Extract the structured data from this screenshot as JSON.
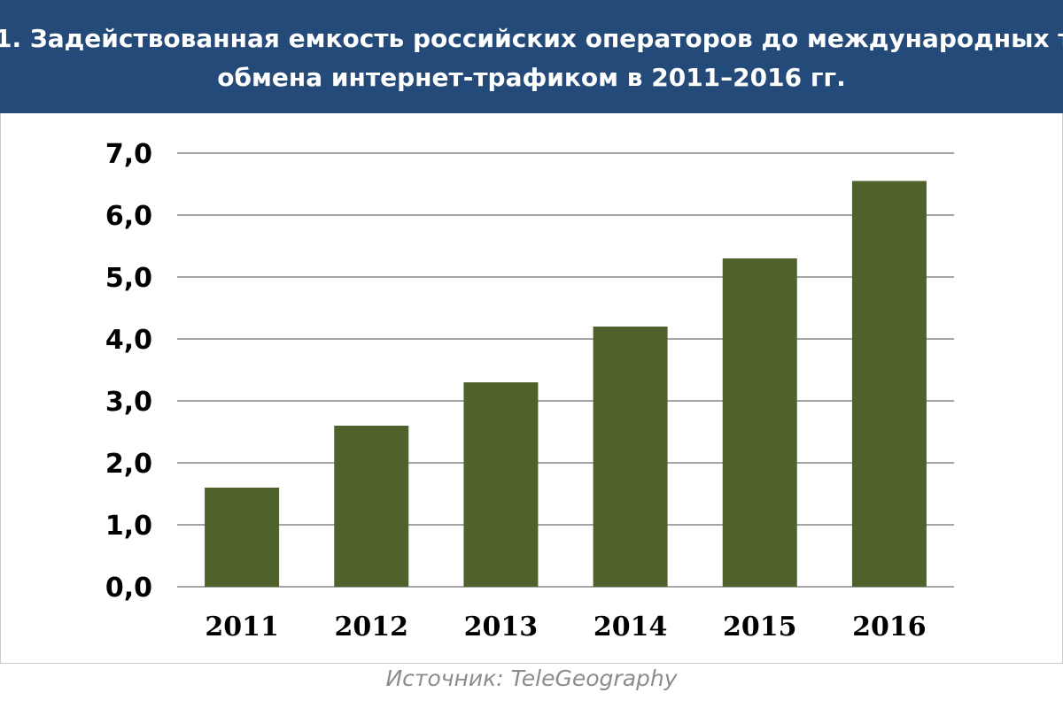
{
  "header": {
    "title_line1": "1. Задействованная емкость российских операторов до международных т",
    "title_line2": "обмена интернет-трафиком в 2011–2016 гг."
  },
  "footer": {
    "source": "Источник: TeleGeography"
  },
  "colors": {
    "header_bg": "#234a78",
    "bar": "#4f622b",
    "grid": "#a6a6a6"
  },
  "chart_data": {
    "type": "bar",
    "title": "1. Задействованная емкость российских операторов до международных т обмена интернет-трафиком в 2011–2016 гг.",
    "categories": [
      "2011",
      "2012",
      "2013",
      "2014",
      "2015",
      "2016"
    ],
    "values": [
      1.6,
      2.6,
      3.3,
      4.2,
      5.3,
      6.55
    ],
    "ylim": [
      0,
      7
    ],
    "yticks": [
      "0,0",
      "1,0",
      "2,0",
      "3,0",
      "4,0",
      "5,0",
      "6,0",
      "7,0"
    ],
    "xlabel": "",
    "ylabel": "",
    "grid": true
  }
}
